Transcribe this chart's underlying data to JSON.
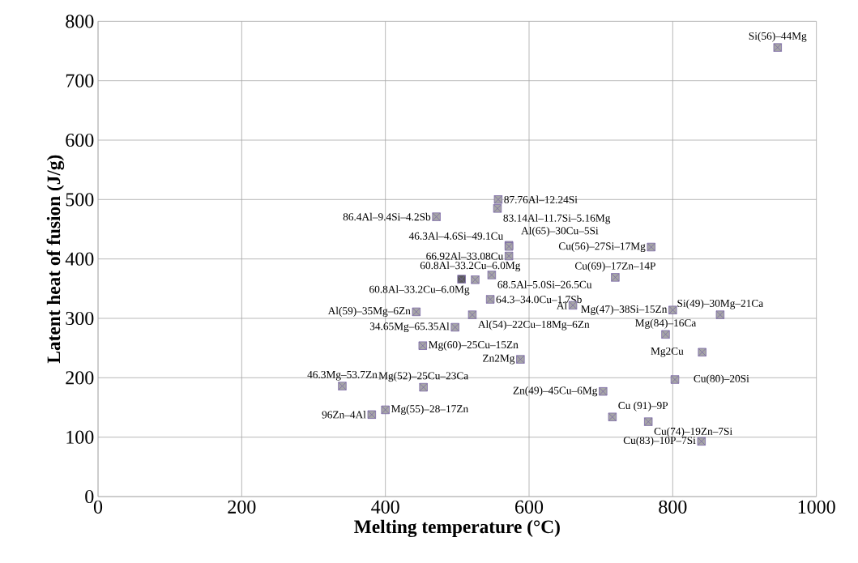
{
  "chart_data": {
    "type": "scatter",
    "xlabel": "Melting temperature (°C)",
    "ylabel": "Latent heat of fusion (J/g)",
    "x": [
      946,
      557,
      556,
      471,
      572,
      572,
      572,
      770,
      720,
      506,
      525,
      548,
      546,
      661,
      800,
      866,
      790,
      443,
      521,
      497,
      452,
      588,
      841,
      803,
      340,
      453,
      703,
      381,
      400,
      716,
      766,
      840
    ],
    "values": [
      756,
      500,
      485,
      471,
      423,
      421,
      405,
      420,
      369,
      366,
      365,
      373,
      332,
      322,
      314,
      306,
      273,
      311,
      306,
      285,
      254,
      231,
      243,
      197,
      186,
      184,
      177,
      138,
      146,
      134,
      126,
      93
    ],
    "value_labels": [
      "Si(56)–44Mg",
      "87.76Al–12.24Si",
      "83.14Al–11.7Si–5.16Mg",
      "86.4Al–9.4Si–4.2Sb",
      "46.3Al–4.6Si–49.1Cu",
      "Al(65)–30Cu–5Si",
      "66.92Al–33.08Cu",
      "Cu(56)–27Si–17Mg",
      "Cu(69)–17Zn–14P",
      "60.8Al–33.2Cu–6.0Mg",
      "60.8Al–33.2Cu–6.0Mg",
      "68.5Al–5.0Si–26.5Cu",
      "64.3–34.0Cu–1.7Sb",
      "Al",
      "Mg(47)–38Si–15Zn",
      "Si(49)–30Mg–21Ca",
      "Mg(84)–16Ca",
      "Al(59)–35Mg–6Zn",
      "Al(54)–22Cu–18Mg–6Zn",
      "34.65Mg–65.35Al",
      "Mg(60)–25Cu–15Zn",
      "Zn2Mg",
      "Mg2Cu",
      "Cu(80)–20Si",
      "46.3Mg–53.7Zn",
      "Mg(52)–25Cu–23Ca",
      "Zn(49)–45Cu–6Mg",
      "96Zn–4Al",
      "Mg(55)–28–17Zn",
      "Cu (91)–9P",
      "Cu(74)–19Zn–7Si",
      "Cu(83)–10P–7Si"
    ],
    "colors": [
      "#a6a6a6",
      "#a6a6a6",
      "#a6a6a6",
      "#a6a6a6",
      "#a6a6a6",
      "#a6a6a6",
      "#a6a6a6",
      "#a6a6a6",
      "#a6a6a6",
      "#5a5a5a",
      "#a6a6a6",
      "#a6a6a6",
      "#a6a6a6",
      "#a6a6a6",
      "#a6a6a6",
      "#a6a6a6",
      "#a6a6a6",
      "#a6a6a6",
      "#a6a6a6",
      "#a6a6a6",
      "#a6a6a6",
      "#a6a6a6",
      "#a6a6a6",
      "#a6a6a6",
      "#a6a6a6",
      "#a6a6a6",
      "#a6a6a6",
      "#a6a6a6",
      "#a6a6a6",
      "#a6a6a6",
      "#a6a6a6",
      "#a6a6a6"
    ],
    "marker": "square",
    "xlim": [
      0,
      1000
    ],
    "xticks": [
      0,
      200,
      400,
      600,
      800,
      1000
    ],
    "ylim": [
      0,
      800
    ],
    "yticks": [
      0,
      100,
      200,
      300,
      400,
      500,
      600,
      700,
      800
    ],
    "grid": true
  }
}
